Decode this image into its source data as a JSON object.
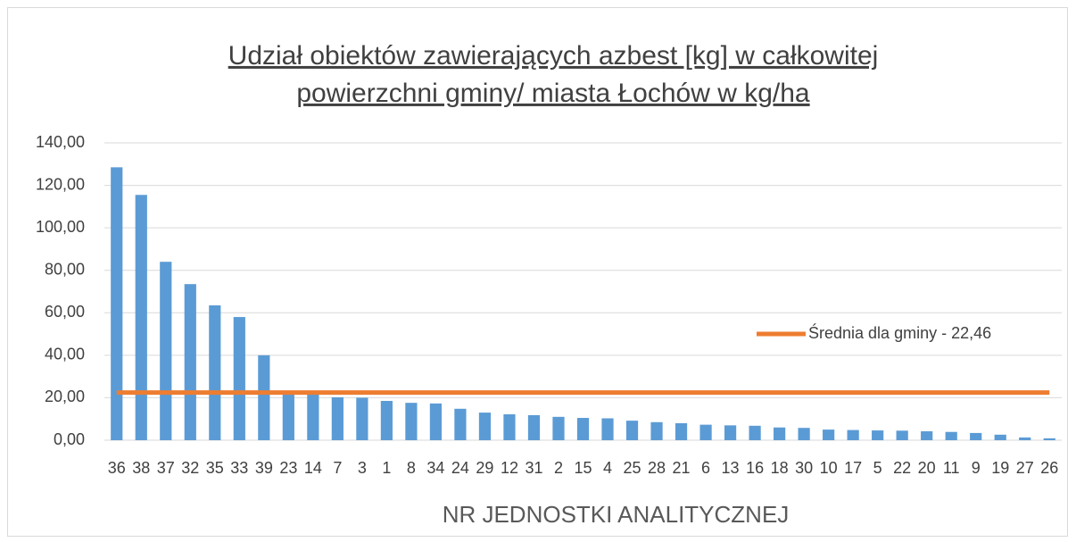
{
  "chart_data": {
    "type": "bar",
    "title": [
      "Udział obiektów zawierających azbest [kg] w całkowitej",
      "powierzchni gminy/ miasta Łochów w kg/ha"
    ],
    "xlabel": "NR JEDNOSTKI ANALITYCZNEJ",
    "categories": [
      "36",
      "38",
      "37",
      "32",
      "35",
      "33",
      "39",
      "23",
      "14",
      "7",
      "3",
      "1",
      "8",
      "34",
      "24",
      "29",
      "12",
      "31",
      "2",
      "15",
      "4",
      "25",
      "28",
      "21",
      "6",
      "13",
      "16",
      "18",
      "30",
      "10",
      "17",
      "5",
      "22",
      "20",
      "11",
      "9",
      "19",
      "27",
      "26"
    ],
    "series": [
      {
        "type": "bar",
        "color": "#5b9bd5",
        "values": [
          128.5,
          115.5,
          84,
          73.5,
          63.5,
          58,
          40,
          22,
          22,
          20.2,
          20,
          18.5,
          17.6,
          17.3,
          14.8,
          13,
          12.2,
          11.8,
          11,
          10.5,
          10.3,
          9.2,
          8.5,
          8,
          7.3,
          7,
          6.8,
          6,
          5.8,
          5,
          4.8,
          4.6,
          4.5,
          4.2,
          3.9,
          3.4,
          2.6,
          1.3,
          0.9
        ]
      },
      {
        "type": "line",
        "name": "Średnia dla gminy - 22,46",
        "color": "#ed7d31",
        "values": [
          22.46,
          22.46,
          22.46,
          22.46,
          22.46,
          22.46,
          22.46,
          22.46,
          22.46,
          22.46,
          22.46,
          22.46,
          22.46,
          22.46,
          22.46,
          22.46,
          22.46,
          22.46,
          22.46,
          22.46,
          22.46,
          22.46,
          22.46,
          22.46,
          22.46,
          22.46,
          22.46,
          22.46,
          22.46,
          22.46,
          22.46,
          22.46,
          22.46,
          22.46,
          22.46,
          22.46,
          22.46,
          22.46,
          22.46
        ]
      }
    ],
    "ylim": [
      0,
      140
    ],
    "yticks": [
      {
        "value": 0,
        "label": "0,00"
      },
      {
        "value": 20,
        "label": "20,00"
      },
      {
        "value": 40,
        "label": "40,00"
      },
      {
        "value": 60,
        "label": "60,00"
      },
      {
        "value": 80,
        "label": "80,00"
      },
      {
        "value": 100,
        "label": "100,00"
      },
      {
        "value": 120,
        "label": "120,00"
      },
      {
        "value": 140,
        "label": "140,00"
      }
    ],
    "grid": true,
    "legend": "right"
  }
}
